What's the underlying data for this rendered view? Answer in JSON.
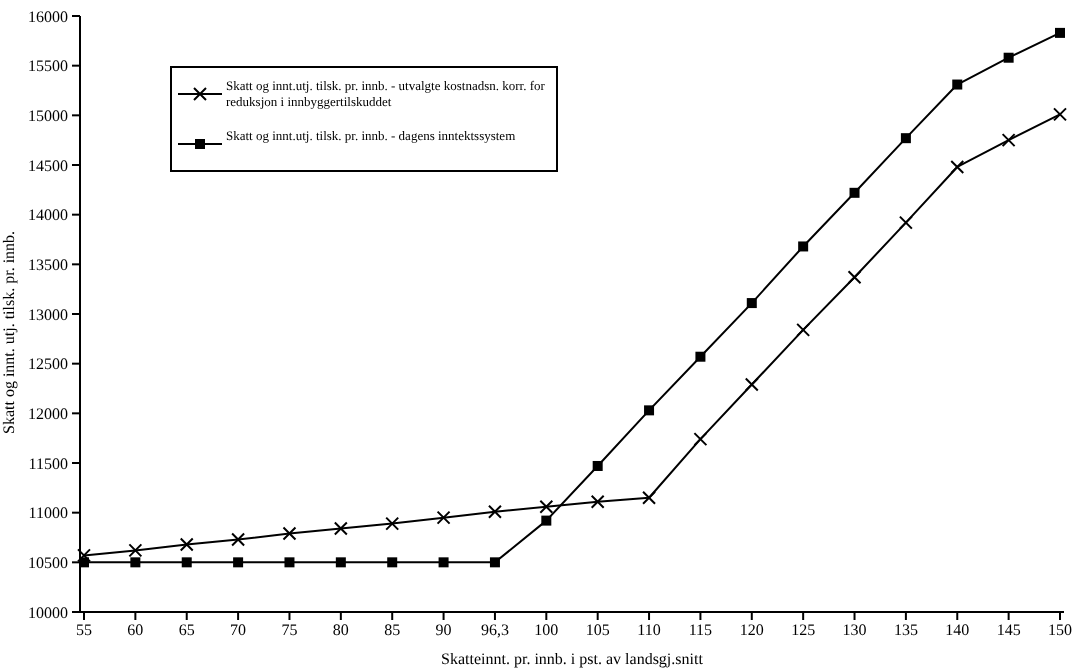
{
  "chart_data": {
    "type": "line",
    "xlabel": "Skatteinnt. pr. innb. i pst. av landsgj.snitt",
    "ylabel": "Skatt og innt. utj. tilsk. pr. innb.",
    "categories": [
      "55",
      "60",
      "65",
      "70",
      "75",
      "80",
      "85",
      "90",
      "96,3",
      "100",
      "105",
      "110",
      "115",
      "120",
      "125",
      "130",
      "135",
      "140",
      "145",
      "150"
    ],
    "series": [
      {
        "name": "Skatt og innt.utj. tilsk. pr. innb. - utvalgte kostnadsn. korr. for reduksjon i innbyggertilskuddet",
        "color": "#000000",
        "marker": "cross",
        "values": [
          10570,
          10620,
          10680,
          10730,
          10790,
          10840,
          10890,
          10950,
          11010,
          11060,
          11110,
          11150,
          11740,
          12290,
          12840,
          13370,
          13920,
          14480,
          14750,
          15010
        ]
      },
      {
        "name": "Skatt og innt.utj. tilsk. pr. innb. - dagens inntektssystem",
        "color": "#000000",
        "marker": "square",
        "values": [
          10500,
          10500,
          10500,
          10500,
          10500,
          10500,
          10500,
          10500,
          10500,
          10920,
          11470,
          12030,
          12570,
          13110,
          13680,
          14220,
          14770,
          15310,
          15580,
          15830
        ]
      }
    ],
    "ylim": [
      10000,
      16000
    ],
    "yticks": [
      10000,
      10500,
      11000,
      11500,
      12000,
      12500,
      13000,
      13500,
      14000,
      14500,
      15000,
      15500,
      16000
    ],
    "grid": false,
    "legend": "top left",
    "line_style": "solid"
  }
}
